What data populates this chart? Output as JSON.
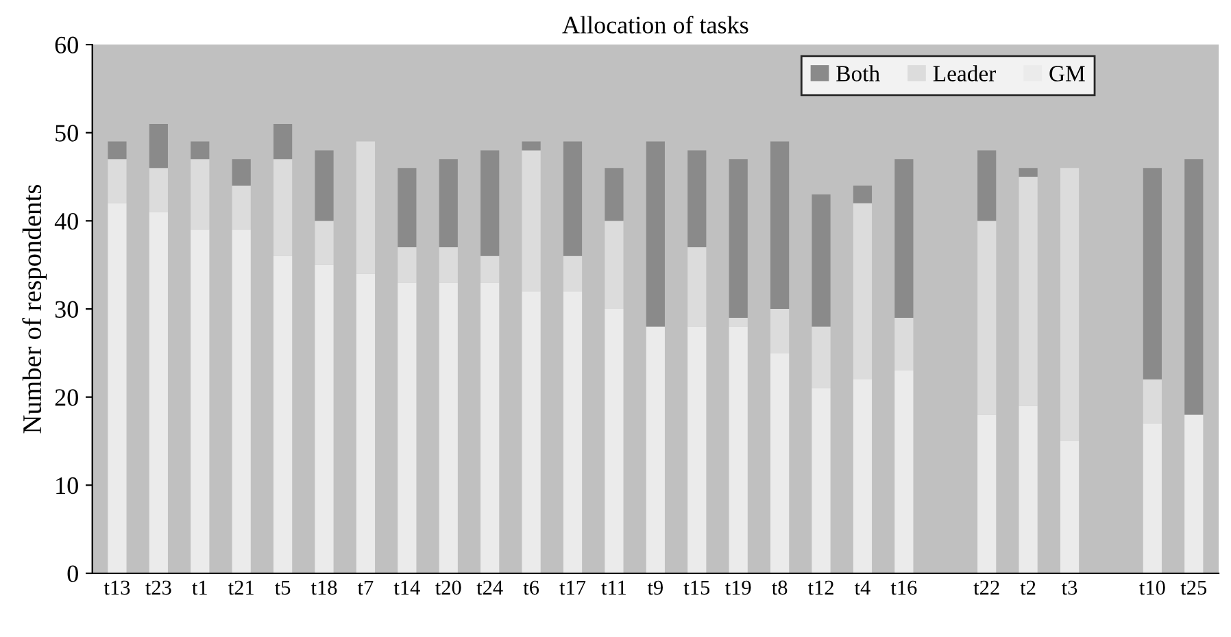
{
  "chart_data": {
    "type": "bar",
    "title": "Allocation of tasks",
    "ylabel": "Number of respondents",
    "stacked": true,
    "categories": [
      "t13",
      "t23",
      "t1",
      "t21",
      "t5",
      "t18",
      "t7",
      "t14",
      "t20",
      "t24",
      "t6",
      "t17",
      "t11",
      "t9",
      "t15",
      "t19",
      "t8",
      "t12",
      "t4",
      "t16",
      null,
      "t22",
      "t2",
      "t3",
      null,
      "t10",
      "t25"
    ],
    "series": [
      {
        "name": "GM",
        "color": "#ebebeb",
        "values": [
          42,
          41,
          39,
          39,
          36,
          35,
          34,
          33,
          33,
          33,
          32,
          32,
          30,
          28,
          28,
          28,
          25,
          21,
          22,
          23,
          null,
          18,
          19,
          15,
          null,
          17,
          18
        ]
      },
      {
        "name": "Leader",
        "color": "#dcdcdc",
        "values": [
          5,
          5,
          8,
          5,
          11,
          5,
          15,
          4,
          4,
          3,
          16,
          4,
          10,
          0,
          9,
          1,
          5,
          7,
          20,
          6,
          null,
          22,
          26,
          31,
          null,
          5,
          0
        ]
      },
      {
        "name": "Both",
        "color": "#8a8a8a",
        "values": [
          2,
          5,
          2,
          3,
          4,
          8,
          0,
          9,
          10,
          12,
          1,
          13,
          6,
          21,
          11,
          18,
          19,
          15,
          2,
          18,
          null,
          8,
          1,
          0,
          null,
          24,
          29
        ]
      }
    ],
    "ylim": [
      0,
      60
    ],
    "yticks": [
      0,
      10,
      20,
      30,
      40,
      50,
      60
    ],
    "grid": false,
    "legend": "top right"
  }
}
